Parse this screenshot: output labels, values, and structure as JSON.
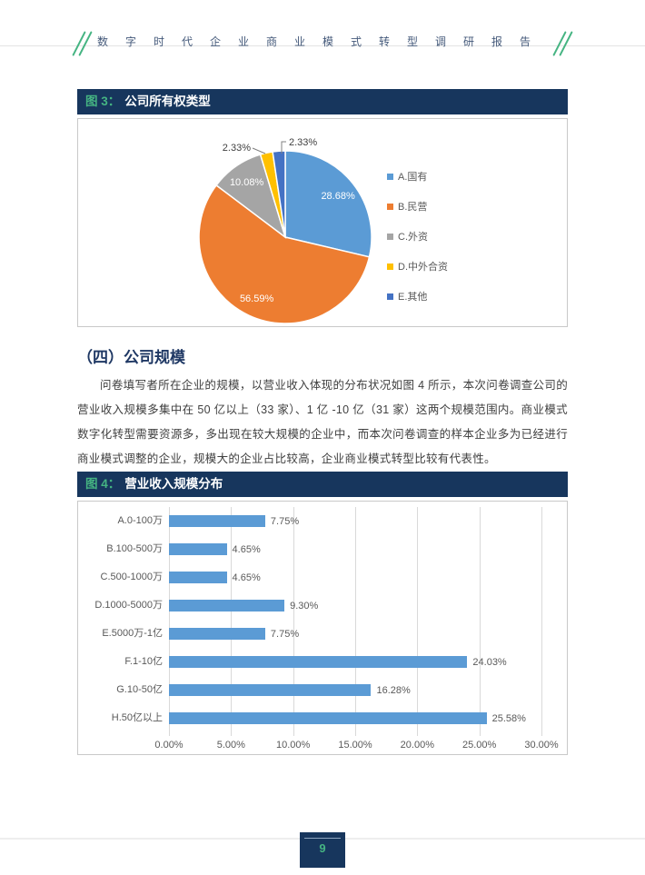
{
  "header": {
    "title": "数字时代企业商业模式转型调研报告"
  },
  "figure3": {
    "label": "图 3：",
    "title": "公司所有权类型"
  },
  "section": {
    "heading": "（四）公司规模",
    "paragraph": "问卷填写者所在企业的规模，以营业收入体现的分布状况如图 4 所示，本次问卷调查公司的营业收入规模多集中在 50 亿以上（33 家）、1 亿 -10 亿（31 家）这两个规模范围内。商业模式数字化转型需要资源多，多出现在较大规模的企业中，而本次问卷调查的样本企业多为已经进行商业模式调整的企业，规模大的企业占比较高，企业商业模式转型比较有代表性。"
  },
  "figure4": {
    "label": "图 4：",
    "title": "营业收入规模分布"
  },
  "footer": {
    "page_number": "9"
  },
  "colors": {
    "navy": "#17365d",
    "accent_green": "#45b482",
    "bar_blue": "#5b9bd5",
    "grid_gray": "#d9d9d9",
    "label_gray": "#595959"
  },
  "chart_data": [
    {
      "type": "pie",
      "title": "公司所有权类型",
      "labels": [
        "A.国有",
        "B.民营",
        "C.外资",
        "D.中外合资",
        "E.其他"
      ],
      "values": [
        28.68,
        56.59,
        10.08,
        2.33,
        2.33
      ],
      "value_labels": [
        "28.68%",
        "56.59%",
        "10.08%",
        "2.33%",
        "2.33%"
      ],
      "colors": [
        "#5B9BD5",
        "#ED7D31",
        "#A5A5A5",
        "#FFC000",
        "#4472C4"
      ],
      "legend_position": "right",
      "start_angle": "12-oclock-clockwise"
    },
    {
      "type": "bar",
      "orientation": "horizontal",
      "title": "营业收入规模分布",
      "categories": [
        "A.0-100万",
        "B.100-500万",
        "C.500-1000万",
        "D.1000-5000万",
        "E.5000万-1亿",
        "F.1-10亿",
        "G.10-50亿",
        "H.50亿以上"
      ],
      "values": [
        7.75,
        4.65,
        4.65,
        9.3,
        7.75,
        24.03,
        16.28,
        25.58
      ],
      "value_labels": [
        "7.75%",
        "4.65%",
        "4.65%",
        "9.30%",
        "7.75%",
        "24.03%",
        "16.28%",
        "25.58%"
      ],
      "bar_color": "#5B9BD5",
      "xlim": [
        0,
        30
      ],
      "x_ticks": [
        "0.00%",
        "5.00%",
        "10.00%",
        "15.00%",
        "20.00%",
        "25.00%",
        "30.00%"
      ],
      "grid": true,
      "legend": false
    }
  ]
}
